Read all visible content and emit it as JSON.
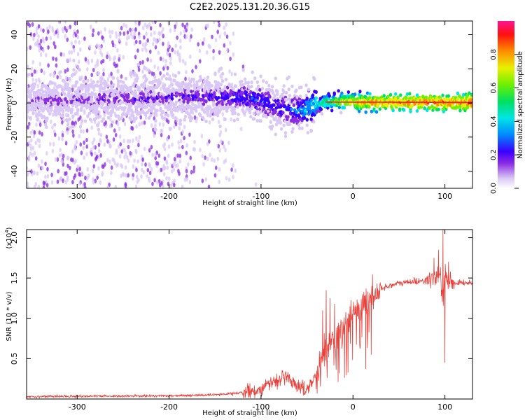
{
  "title": "C2E2.2025.131.20.36.G15",
  "colors": {
    "snr_line": "#e8403a",
    "spectrum_core": "#d7303a",
    "frame": "#000000"
  },
  "chart_data": [
    {
      "type": "heatmap",
      "xlabel": "Height of straight line (km)",
      "ylabel": "Frequency (Hz)",
      "xlim": [
        -355,
        130
      ],
      "ylim": [
        -50,
        48
      ],
      "xticks": [
        -300,
        -200,
        -100,
        0,
        100
      ],
      "yticks": [
        -40,
        -20,
        0,
        20,
        40
      ],
      "colorbar": {
        "label": "Normalized spectral amplitude",
        "range": [
          0,
          1
        ],
        "ticks": [
          0.0,
          0.2,
          0.4,
          0.6,
          0.8
        ],
        "tick_labels": [
          "0.0",
          "0.2",
          "0.4",
          "0.6",
          "0.8"
        ]
      },
      "ridge": [
        {
          "x": -355,
          "f": 1.5,
          "amp": 0.15
        },
        {
          "x": -300,
          "f": 2.0,
          "amp": 0.18
        },
        {
          "x": -250,
          "f": 2.5,
          "amp": 0.2
        },
        {
          "x": -200,
          "f": 3.0,
          "amp": 0.22
        },
        {
          "x": -150,
          "f": 3.5,
          "amp": 0.25
        },
        {
          "x": -120,
          "f": 3.0,
          "amp": 0.3
        },
        {
          "x": -100,
          "f": 2.0,
          "amp": 0.32
        },
        {
          "x": -80,
          "f": -3.0,
          "amp": 0.3
        },
        {
          "x": -60,
          "f": -5.0,
          "amp": 0.35
        },
        {
          "x": -45,
          "f": -2.0,
          "amp": 0.45
        },
        {
          "x": -30,
          "f": 0.5,
          "amp": 0.6
        },
        {
          "x": -10,
          "f": 1.0,
          "amp": 0.75
        },
        {
          "x": 10,
          "f": 0.5,
          "amp": 0.85
        },
        {
          "x": 50,
          "f": 0.3,
          "amp": 0.9
        },
        {
          "x": 100,
          "f": 0.3,
          "amp": 0.92
        },
        {
          "x": 130,
          "f": 0.3,
          "amp": 0.92
        }
      ]
    },
    {
      "type": "line",
      "xlabel": "Height of straight line (km)",
      "ylabel": "SNR (10 * v/v)",
      "y_scale_label": "(x10",
      "y_scale_exp": "4",
      "xlim": [
        -355,
        130
      ],
      "ylim": [
        0,
        21000
      ],
      "xticks": [
        -300,
        -200,
        -100,
        0,
        100
      ],
      "yticks": [
        5000,
        10000,
        15000,
        20000
      ],
      "ytick_labels": [
        "0.5",
        "1.0",
        "1.5",
        "2.0"
      ],
      "series": [
        {
          "x": [
            -355,
            -300,
            -250,
            -200,
            -150,
            -120,
            -100,
            -90,
            -80,
            -70,
            -60,
            -50,
            -45,
            -40,
            -35,
            -30,
            -25,
            -20,
            -15,
            -10,
            -5,
            0,
            10,
            20,
            30,
            40,
            50,
            60,
            70,
            80,
            90,
            95,
            98,
            100,
            102,
            110,
            120,
            130
          ],
          "y": [
            300,
            350,
            350,
            400,
            500,
            800,
            1200,
            2000,
            2500,
            2600,
            1500,
            1200,
            2000,
            3000,
            5000,
            6500,
            7000,
            7500,
            8200,
            8800,
            9500,
            10200,
            11500,
            12700,
            13600,
            14100,
            14300,
            14500,
            14600,
            14700,
            14800,
            15500,
            12000,
            16000,
            14500,
            14400,
            14400,
            14400
          ]
        }
      ],
      "spikes": [
        {
          "x": -55,
          "y": 2400
        },
        {
          "x": -33,
          "y": 11000
        },
        {
          "x": -29,
          "y": 13500
        },
        {
          "x": -25,
          "y": 12500
        },
        {
          "x": -20,
          "y": 11800
        },
        {
          "x": 88,
          "y": 17500
        },
        {
          "x": 93,
          "y": 18500
        },
        {
          "x": 98,
          "y": 21000
        },
        {
          "x": 100,
          "y": 4500
        },
        {
          "x": 104,
          "y": 17000
        }
      ]
    }
  ]
}
